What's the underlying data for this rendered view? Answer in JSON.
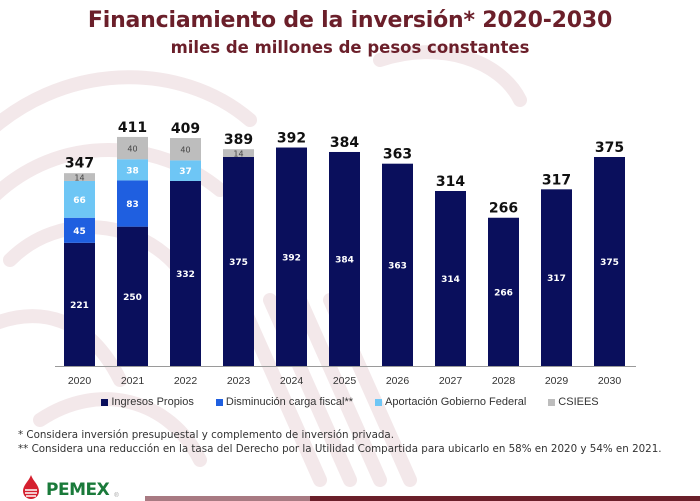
{
  "header": {
    "title": "Financiamiento de la inversión* 2020-2030",
    "subtitle": "miles de millones de pesos constantes"
  },
  "chart_data": {
    "type": "bar",
    "stacked": true,
    "title": "Financiamiento de la inversión* 2020-2030",
    "subtitle": "miles de millones de pesos constantes",
    "xlabel": "",
    "ylabel": "",
    "categories": [
      "2020",
      "2021",
      "2022",
      "2023",
      "2024",
      "2025",
      "2026",
      "2027",
      "2028",
      "2029",
      "2030"
    ],
    "series": [
      {
        "name": "Ingresos Propios",
        "color": "#0a0f5c",
        "label_color": "#ffffff",
        "values": [
          221,
          250,
          332,
          375,
          392,
          384,
          363,
          314,
          266,
          317,
          375
        ]
      },
      {
        "name": "Disminución carga fiscal**",
        "color": "#1f5fe0",
        "label_color": "#ffffff",
        "values": [
          45,
          83,
          0,
          0,
          0,
          0,
          0,
          0,
          0,
          0,
          0
        ]
      },
      {
        "name": "Aportación Gobierno Federal",
        "color": "#6ec6f5",
        "label_color": "#ffffff",
        "values": [
          66,
          38,
          37,
          0,
          0,
          0,
          0,
          0,
          0,
          0,
          0
        ]
      },
      {
        "name": "CSIEES",
        "color": "#bdbdbd",
        "label_color": "#444444",
        "values": [
          14,
          40,
          40,
          14,
          0,
          0,
          0,
          0,
          0,
          0,
          0
        ]
      }
    ],
    "totals": [
      347,
      411,
      409,
      389,
      392,
      384,
      363,
      314,
      266,
      317,
      375
    ],
    "ylim": [
      0,
      430
    ],
    "grid": false,
    "y_axis_visible": false,
    "legend_position": "bottom"
  },
  "legend": [
    {
      "label": "Ingresos Propios",
      "color": "#0a0f5c"
    },
    {
      "label": "Disminución carga fiscal**",
      "color": "#1f5fe0"
    },
    {
      "label": "Aportación Gobierno Federal",
      "color": "#6ec6f5"
    },
    {
      "label": "CSIEES",
      "color": "#bdbdbd"
    }
  ],
  "notes": [
    "* Considera inversión presupuestal y complemento de inversión privada.",
    "** Considera una reducción en la tasa del Derecho por la Utilidad Compartida para ubicarlo en 58% en 2020 y 54% en 2021."
  ],
  "footer": {
    "logo_text": "PEMEX",
    "logo_reg": "®"
  },
  "colors": {
    "brand_maroon": "#6b1f2a",
    "brand_green": "#1a7a3a",
    "brand_red": "#d5202f"
  }
}
